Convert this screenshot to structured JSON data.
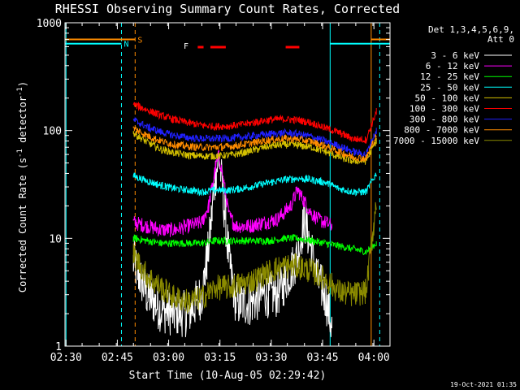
{
  "chart_data": {
    "type": "line",
    "title": "RHESSI Observing Summary Count Rates, Corrected",
    "xlabel": "Start Time (10-Aug-05 02:29:42)",
    "ylabel_main": "Corrected Count Rate (s",
    "ylabel_sup1": "-1",
    "ylabel_mid": " detector",
    "ylabel_sup2": "-1",
    "ylabel_end": ")",
    "yscale": "log",
    "ylim": [
      1,
      1000
    ],
    "xlim_minutes": [
      0,
      95
    ],
    "x_tick_labels": [
      "02:30",
      "02:45",
      "03:00",
      "03:15",
      "03:30",
      "03:45",
      "04:00"
    ],
    "x_ticks_minutes": [
      0.3,
      15.3,
      30.3,
      45.3,
      60.3,
      75.3,
      90.3
    ],
    "y_tick_labels": [
      "1",
      "10",
      "100",
      "1000"
    ],
    "y_ticks": [
      1,
      10,
      100,
      1000
    ],
    "legend": {
      "header1": "Det 1,3,4,5,6,9,",
      "header2": "Att 0",
      "placement": "right"
    },
    "series": [
      {
        "name": "3 - 6 keV",
        "color": "#ffffff",
        "x": [
          20,
          24,
          28,
          32,
          36,
          40,
          42,
          44,
          45,
          46,
          48,
          50,
          54,
          58,
          62,
          66,
          68,
          70,
          72,
          74,
          76,
          78
        ],
        "y": [
          6,
          3,
          2.2,
          2,
          2,
          3,
          8,
          40,
          55,
          30,
          6,
          2.5,
          2.5,
          3,
          3,
          5,
          7,
          15,
          8,
          4,
          3,
          1.5
        ]
      },
      {
        "name": "6 - 12 keV",
        "color": "#ff00ff",
        "x": [
          20,
          24,
          28,
          32,
          36,
          40,
          42,
          44,
          45,
          46,
          48,
          50,
          54,
          58,
          62,
          66,
          68,
          70,
          72,
          74,
          76,
          78
        ],
        "y": [
          14,
          13,
          12,
          12,
          13,
          14,
          20,
          45,
          58,
          40,
          16,
          13,
          13,
          14,
          15,
          20,
          28,
          22,
          17,
          15,
          14,
          13
        ]
      },
      {
        "name": "12 - 25 keV",
        "color": "#00ff00",
        "x": [
          20,
          24,
          28,
          32,
          36,
          40,
          44,
          48,
          52,
          56,
          60,
          64,
          68,
          72,
          76,
          80,
          84,
          88,
          91
        ],
        "y": [
          10,
          9.5,
          9,
          9,
          9,
          9,
          9.5,
          9.5,
          9.5,
          9.5,
          9.5,
          10,
          10,
          9.5,
          9,
          8.5,
          8,
          7.5,
          9
        ]
      },
      {
        "name": "25 - 50 keV",
        "color": "#00ffff",
        "x": [
          20,
          24,
          28,
          32,
          36,
          40,
          44,
          48,
          52,
          56,
          60,
          64,
          68,
          72,
          76,
          80,
          84,
          88,
          91
        ],
        "y": [
          38,
          34,
          31,
          29,
          28,
          27,
          28,
          28,
          29,
          31,
          33,
          35,
          36,
          35,
          33,
          29,
          27,
          27,
          40
        ]
      },
      {
        "name": "50 - 100 keV",
        "color": "#d4c000",
        "x": [
          20,
          24,
          28,
          32,
          36,
          40,
          44,
          48,
          52,
          56,
          60,
          64,
          68,
          72,
          76,
          80,
          84,
          88,
          91
        ],
        "y": [
          95,
          78,
          67,
          62,
          59,
          58,
          58,
          59,
          62,
          67,
          72,
          74,
          73,
          70,
          64,
          57,
          52,
          52,
          80
        ]
      },
      {
        "name": "100 - 300 keV",
        "color": "#ff0000",
        "x": [
          20,
          24,
          28,
          32,
          36,
          40,
          44,
          48,
          52,
          56,
          60,
          64,
          68,
          72,
          76,
          80,
          84,
          88,
          91
        ],
        "y": [
          175,
          155,
          138,
          126,
          118,
          112,
          109,
          110,
          114,
          120,
          126,
          128,
          125,
          118,
          106,
          96,
          84,
          82,
          150
        ]
      },
      {
        "name": "300 - 800 keV",
        "color": "#2020ff",
        "x": [
          20,
          24,
          28,
          32,
          36,
          40,
          44,
          48,
          52,
          56,
          60,
          64,
          68,
          72,
          76,
          80,
          84,
          88,
          91
        ],
        "y": [
          125,
          108,
          97,
          90,
          86,
          84,
          84,
          85,
          87,
          90,
          93,
          95,
          93,
          88,
          80,
          72,
          64,
          60,
          100
        ]
      },
      {
        "name": "800 - 7000 keV",
        "color": "#ff8c00",
        "x": [
          20,
          24,
          28,
          32,
          36,
          40,
          44,
          48,
          52,
          56,
          60,
          64,
          68,
          72,
          76,
          80,
          84,
          88,
          91
        ],
        "y": [
          105,
          90,
          80,
          74,
          71,
          70,
          70,
          71,
          74,
          78,
          82,
          84,
          83,
          79,
          72,
          64,
          57,
          55,
          90
        ]
      },
      {
        "name": "7000 - 15000 keV",
        "color": "#8b8b00",
        "x": [
          20,
          24,
          28,
          32,
          36,
          40,
          44,
          48,
          52,
          56,
          60,
          64,
          68,
          72,
          76,
          80,
          84,
          88,
          91
        ],
        "y": [
          7,
          4.5,
          3.5,
          2.8,
          2.6,
          2.8,
          3.5,
          3.5,
          3.8,
          4.2,
          5,
          5.5,
          5.5,
          5,
          4.2,
          3.2,
          3,
          3.2,
          22
        ]
      }
    ],
    "flags": [
      {
        "label": "S",
        "color": "#ff8c00",
        "x": [
          0,
          20.5
        ],
        "y": 700
      },
      {
        "label": "N",
        "color": "#00ffff",
        "x": [
          0,
          16.5
        ],
        "y": 640
      }
    ],
    "flare_label": "F",
    "flare_color": "#ff0000",
    "flare_intervals": [
      [
        38.8,
        40.5
      ],
      [
        42.5,
        47.0
      ],
      [
        64.5,
        68.5
      ]
    ],
    "vlines": [
      {
        "x": 0.3,
        "color": "#00ffff",
        "style": "solid"
      },
      {
        "x": 16.5,
        "color": "#00ffff",
        "style": "dashed"
      },
      {
        "x": 20.5,
        "color": "#ff8c00",
        "style": "dashed"
      },
      {
        "x": 77.5,
        "color": "#00ffff",
        "style": "solid"
      },
      {
        "x": 89.5,
        "color": "#ff8c00",
        "style": "solid"
      },
      {
        "x": 92.0,
        "color": "#00ffff",
        "style": "dashed"
      }
    ]
  },
  "footer": {
    "timestamp": "19-Oct-2021 01:35"
  }
}
